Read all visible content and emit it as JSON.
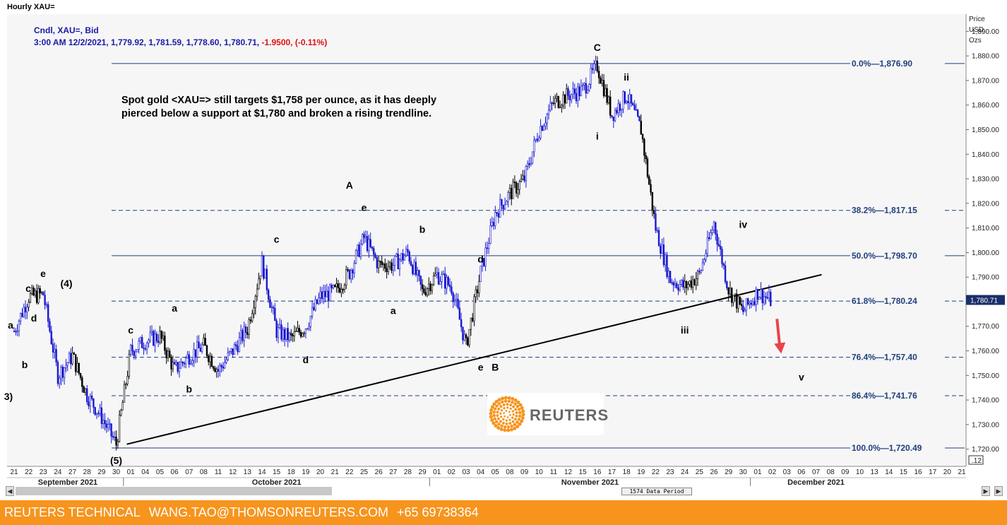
{
  "window_title": "Hourly XAU=",
  "legend": {
    "line1": "Cndl, XAU=, Bid",
    "line2_prefix": "3:00 AM 12/2/2021, 1,779.92, 1,781.59, 1,778.60, 1,780.71, ",
    "line2_change": "-1.9500, (-0.11%)"
  },
  "annotation_text": "Spot gold <XAU=> still targets $1,758 per ounce, as it has deeply pierced below a support at $1,780 and broken a rising trendline.",
  "price_axis_title": [
    "Price",
    "USD",
    "Ozs"
  ],
  "footer": {
    "name": "REUTERS TECHNICAL",
    "email": "WANG.TAO@THOMSONREUTERS.COM",
    "phone": "+65 69738364"
  },
  "logo_text": "REUTERS",
  "data_period_label": "1574 Data Period",
  "colors": {
    "accent_footer": "#f7941d",
    "candle_blue": "#1a1ad0",
    "candle_black": "#000000",
    "fib_line": "#1f3f7a",
    "arrow_red": "#e8454a",
    "price_tag_bg": "#1a2f6a"
  },
  "chart_data": {
    "type": "candlestick",
    "title": "",
    "ylabel": "Price USD Ozs",
    "ylim": [
      1713,
      1897
    ],
    "ytick_labels": [
      "1,720.00",
      "1,730.00",
      "1,740.00",
      "1,750.00",
      "1,760.00",
      "1,770.00",
      "1,780.00",
      "1,790.00",
      "1,800.00",
      "1,810.00",
      "1,820.00",
      "1,830.00",
      "1,840.00",
      "1,850.00",
      "1,860.00",
      "1,870.00",
      "1,880.00",
      "1,890.00"
    ],
    "last_price_tag": "1,780.71",
    "bottom_right_tag": ".12",
    "x_day_labels": [
      "21",
      "22",
      "23",
      "24",
      "27",
      "28",
      "29",
      "30",
      "01",
      "04",
      "05",
      "06",
      "07",
      "08",
      "11",
      "12",
      "13",
      "14",
      "15",
      "18",
      "19",
      "20",
      "21",
      "22",
      "25",
      "26",
      "27",
      "28",
      "29",
      "01",
      "02",
      "03",
      "04",
      "05",
      "08",
      "09",
      "10",
      "11",
      "12",
      "15",
      "16",
      "17",
      "18",
      "19",
      "22",
      "23",
      "24",
      "25",
      "26",
      "29",
      "30",
      "01",
      "02",
      "03",
      "06",
      "07",
      "08",
      "09",
      "10",
      "13",
      "14",
      "15",
      "16",
      "17",
      "20",
      "21"
    ],
    "x_month_labels": [
      "September 2021",
      "October 2021",
      "November 2021",
      "December 2021"
    ],
    "fib_levels": [
      {
        "label": "0.0%",
        "value": "1,876.90",
        "price": 1876.9,
        "style": "solid"
      },
      {
        "label": "38.2%",
        "value": "1,817.15",
        "price": 1817.15,
        "style": "dashed"
      },
      {
        "label": "50.0%",
        "value": "1,798.70",
        "price": 1798.7,
        "style": "solid"
      },
      {
        "label": "61.8%",
        "value": "1,780.24",
        "price": 1780.24,
        "style": "dashed"
      },
      {
        "label": "76.4%",
        "value": "1,757.40",
        "price": 1757.4,
        "style": "dashed"
      },
      {
        "label": "86.4%",
        "value": "1,741.76",
        "price": 1741.76,
        "style": "dashed"
      },
      {
        "label": "100.0%",
        "value": "1,720.49",
        "price": 1720.49,
        "style": "solid"
      }
    ],
    "trendline": {
      "from_day": "30",
      "from_month": "September 2021",
      "from_price": 1722,
      "to_day": "07",
      "to_month": "December 2021",
      "to_price": 1791
    },
    "wave_labels": [
      {
        "text": "a",
        "day_index": 0,
        "price": 1769
      },
      {
        "text": "b",
        "day_index": 1,
        "price": 1753
      },
      {
        "text": "c",
        "day_index": 2,
        "price": 1784
      },
      {
        "text": "d",
        "day_index": 3,
        "price": 1772
      },
      {
        "text": "e",
        "day_index": 4,
        "price": 1790
      },
      {
        "text": "(4)",
        "day_index": 5,
        "price": 1786
      },
      {
        "text": "3)",
        "day_index": 6,
        "price": 1740
      },
      {
        "text": "(5)",
        "day_index": 7,
        "price": 1714
      },
      {
        "text": "a",
        "day_index": 8,
        "price": 1776
      },
      {
        "text": "b",
        "day_index": 9,
        "price": 1743
      },
      {
        "text": "c",
        "day_index": 10,
        "price": 1804
      },
      {
        "text": "d",
        "day_index": 11,
        "price": 1755
      },
      {
        "text": "A",
        "day_index": 12,
        "price": 1826
      },
      {
        "text": "e",
        "day_index": 13,
        "price": 1817
      },
      {
        "text": "a",
        "day_index": 14,
        "price": 1775
      },
      {
        "text": "b",
        "day_index": 15,
        "price": 1808
      },
      {
        "text": "c",
        "day_index": 16,
        "price": 1767
      },
      {
        "text": "d",
        "day_index": 17,
        "price": 1796
      },
      {
        "text": "e",
        "day_index": 18,
        "price": 1752
      },
      {
        "text": "B",
        "day_index": 19,
        "price": 1752
      },
      {
        "text": "C",
        "day_index": 20,
        "price": 1882
      },
      {
        "text": "ii",
        "day_index": 21,
        "price": 1870
      },
      {
        "text": "i",
        "day_index": 22,
        "price": 1846
      },
      {
        "text": "iv",
        "day_index": 23,
        "price": 1810
      },
      {
        "text": "iii",
        "day_index": 24,
        "price": 1767
      },
      {
        "text": "v",
        "day_index": 25,
        "price": 1748
      }
    ],
    "wave_label_days": [
      [
        "21",
        "September 2021"
      ],
      [
        "22",
        "September 2021"
      ],
      [
        "22",
        "September 2021"
      ],
      [
        "23",
        "September 2021"
      ],
      [
        "23",
        "September 2021"
      ],
      [
        "27",
        "September 2021"
      ],
      [
        "21",
        "September 2021"
      ],
      [
        "30",
        "September 2021"
      ],
      [
        "06",
        "October 2021"
      ],
      [
        "07",
        "October 2021"
      ],
      [
        "15",
        "October 2021"
      ],
      [
        "19",
        "October 2021"
      ],
      [
        "22",
        "October 2021"
      ],
      [
        "25",
        "October 2021"
      ],
      [
        "27",
        "October 2021"
      ],
      [
        "29",
        "October 2021"
      ],
      [
        "01",
        "October 2021"
      ],
      [
        "04",
        "November 2021"
      ],
      [
        "04",
        "November 2021"
      ],
      [
        "05",
        "November 2021"
      ],
      [
        "16",
        "November 2021"
      ],
      [
        "18",
        "November 2021"
      ],
      [
        "16",
        "November 2021"
      ],
      [
        "30",
        "November 2021"
      ],
      [
        "24",
        "November 2021"
      ],
      [
        "06",
        "December 2021"
      ]
    ],
    "price_path": [
      [
        "21",
        "September 2021",
        1768
      ],
      [
        "22",
        "September 2021",
        1782
      ],
      [
        "23",
        "September 2021",
        1783
      ],
      [
        "24",
        "September 2021",
        1750
      ],
      [
        "27",
        "September 2021",
        1758
      ],
      [
        "28",
        "September 2021",
        1742
      ],
      [
        "29",
        "September 2021",
        1733
      ],
      [
        "30",
        "September 2021",
        1722
      ],
      [
        "01",
        "October 2021",
        1760
      ],
      [
        "04",
        "October 2021",
        1764
      ],
      [
        "05",
        "October 2021",
        1766
      ],
      [
        "06",
        "October 2021",
        1752
      ],
      [
        "07",
        "October 2021",
        1758
      ],
      [
        "08",
        "October 2021",
        1762
      ],
      [
        "11",
        "October 2021",
        1752
      ],
      [
        "12",
        "October 2021",
        1760
      ],
      [
        "13",
        "October 2021",
        1769
      ],
      [
        "14",
        "October 2021",
        1796
      ],
      [
        "15",
        "October 2021",
        1768
      ],
      [
        "18",
        "October 2021",
        1765
      ],
      [
        "19",
        "October 2021",
        1770
      ],
      [
        "20",
        "October 2021",
        1782
      ],
      [
        "21",
        "October 2021",
        1784
      ],
      [
        "22",
        "October 2021",
        1792
      ],
      [
        "25",
        "October 2021",
        1806
      ],
      [
        "26",
        "October 2021",
        1795
      ],
      [
        "27",
        "October 2021",
        1795
      ],
      [
        "28",
        "October 2021",
        1800
      ],
      [
        "29",
        "October 2021",
        1784
      ],
      [
        "01",
        "November 2021",
        1791
      ],
      [
        "02",
        "November 2021",
        1786
      ],
      [
        "03",
        "November 2021",
        1762
      ],
      [
        "04",
        "November 2021",
        1792
      ],
      [
        "05",
        "November 2021",
        1816
      ],
      [
        "08",
        "November 2021",
        1824
      ],
      [
        "09",
        "November 2021",
        1830
      ],
      [
        "10",
        "November 2021",
        1850
      ],
      [
        "11",
        "November 2021",
        1861
      ],
      [
        "12",
        "November 2021",
        1864
      ],
      [
        "15",
        "November 2021",
        1866
      ],
      [
        "16",
        "November 2021",
        1876
      ],
      [
        "17",
        "November 2021",
        1856
      ],
      [
        "18",
        "November 2021",
        1864
      ],
      [
        "19",
        "November 2021",
        1850
      ],
      [
        "22",
        "November 2021",
        1810
      ],
      [
        "23",
        "November 2021",
        1789
      ],
      [
        "24",
        "November 2021",
        1786
      ],
      [
        "25",
        "November 2021",
        1791
      ],
      [
        "26",
        "November 2021",
        1812
      ],
      [
        "29",
        "November 2021",
        1785
      ],
      [
        "30",
        "November 2021",
        1776
      ],
      [
        "01",
        "December 2021",
        1784
      ],
      [
        "02",
        "December 2021",
        1780
      ]
    ],
    "forecast_arrow": {
      "from_price": 1773,
      "to_price": 1760,
      "day": "03",
      "month": "December 2021"
    },
    "legend_placement": "top-left",
    "grid": false
  }
}
